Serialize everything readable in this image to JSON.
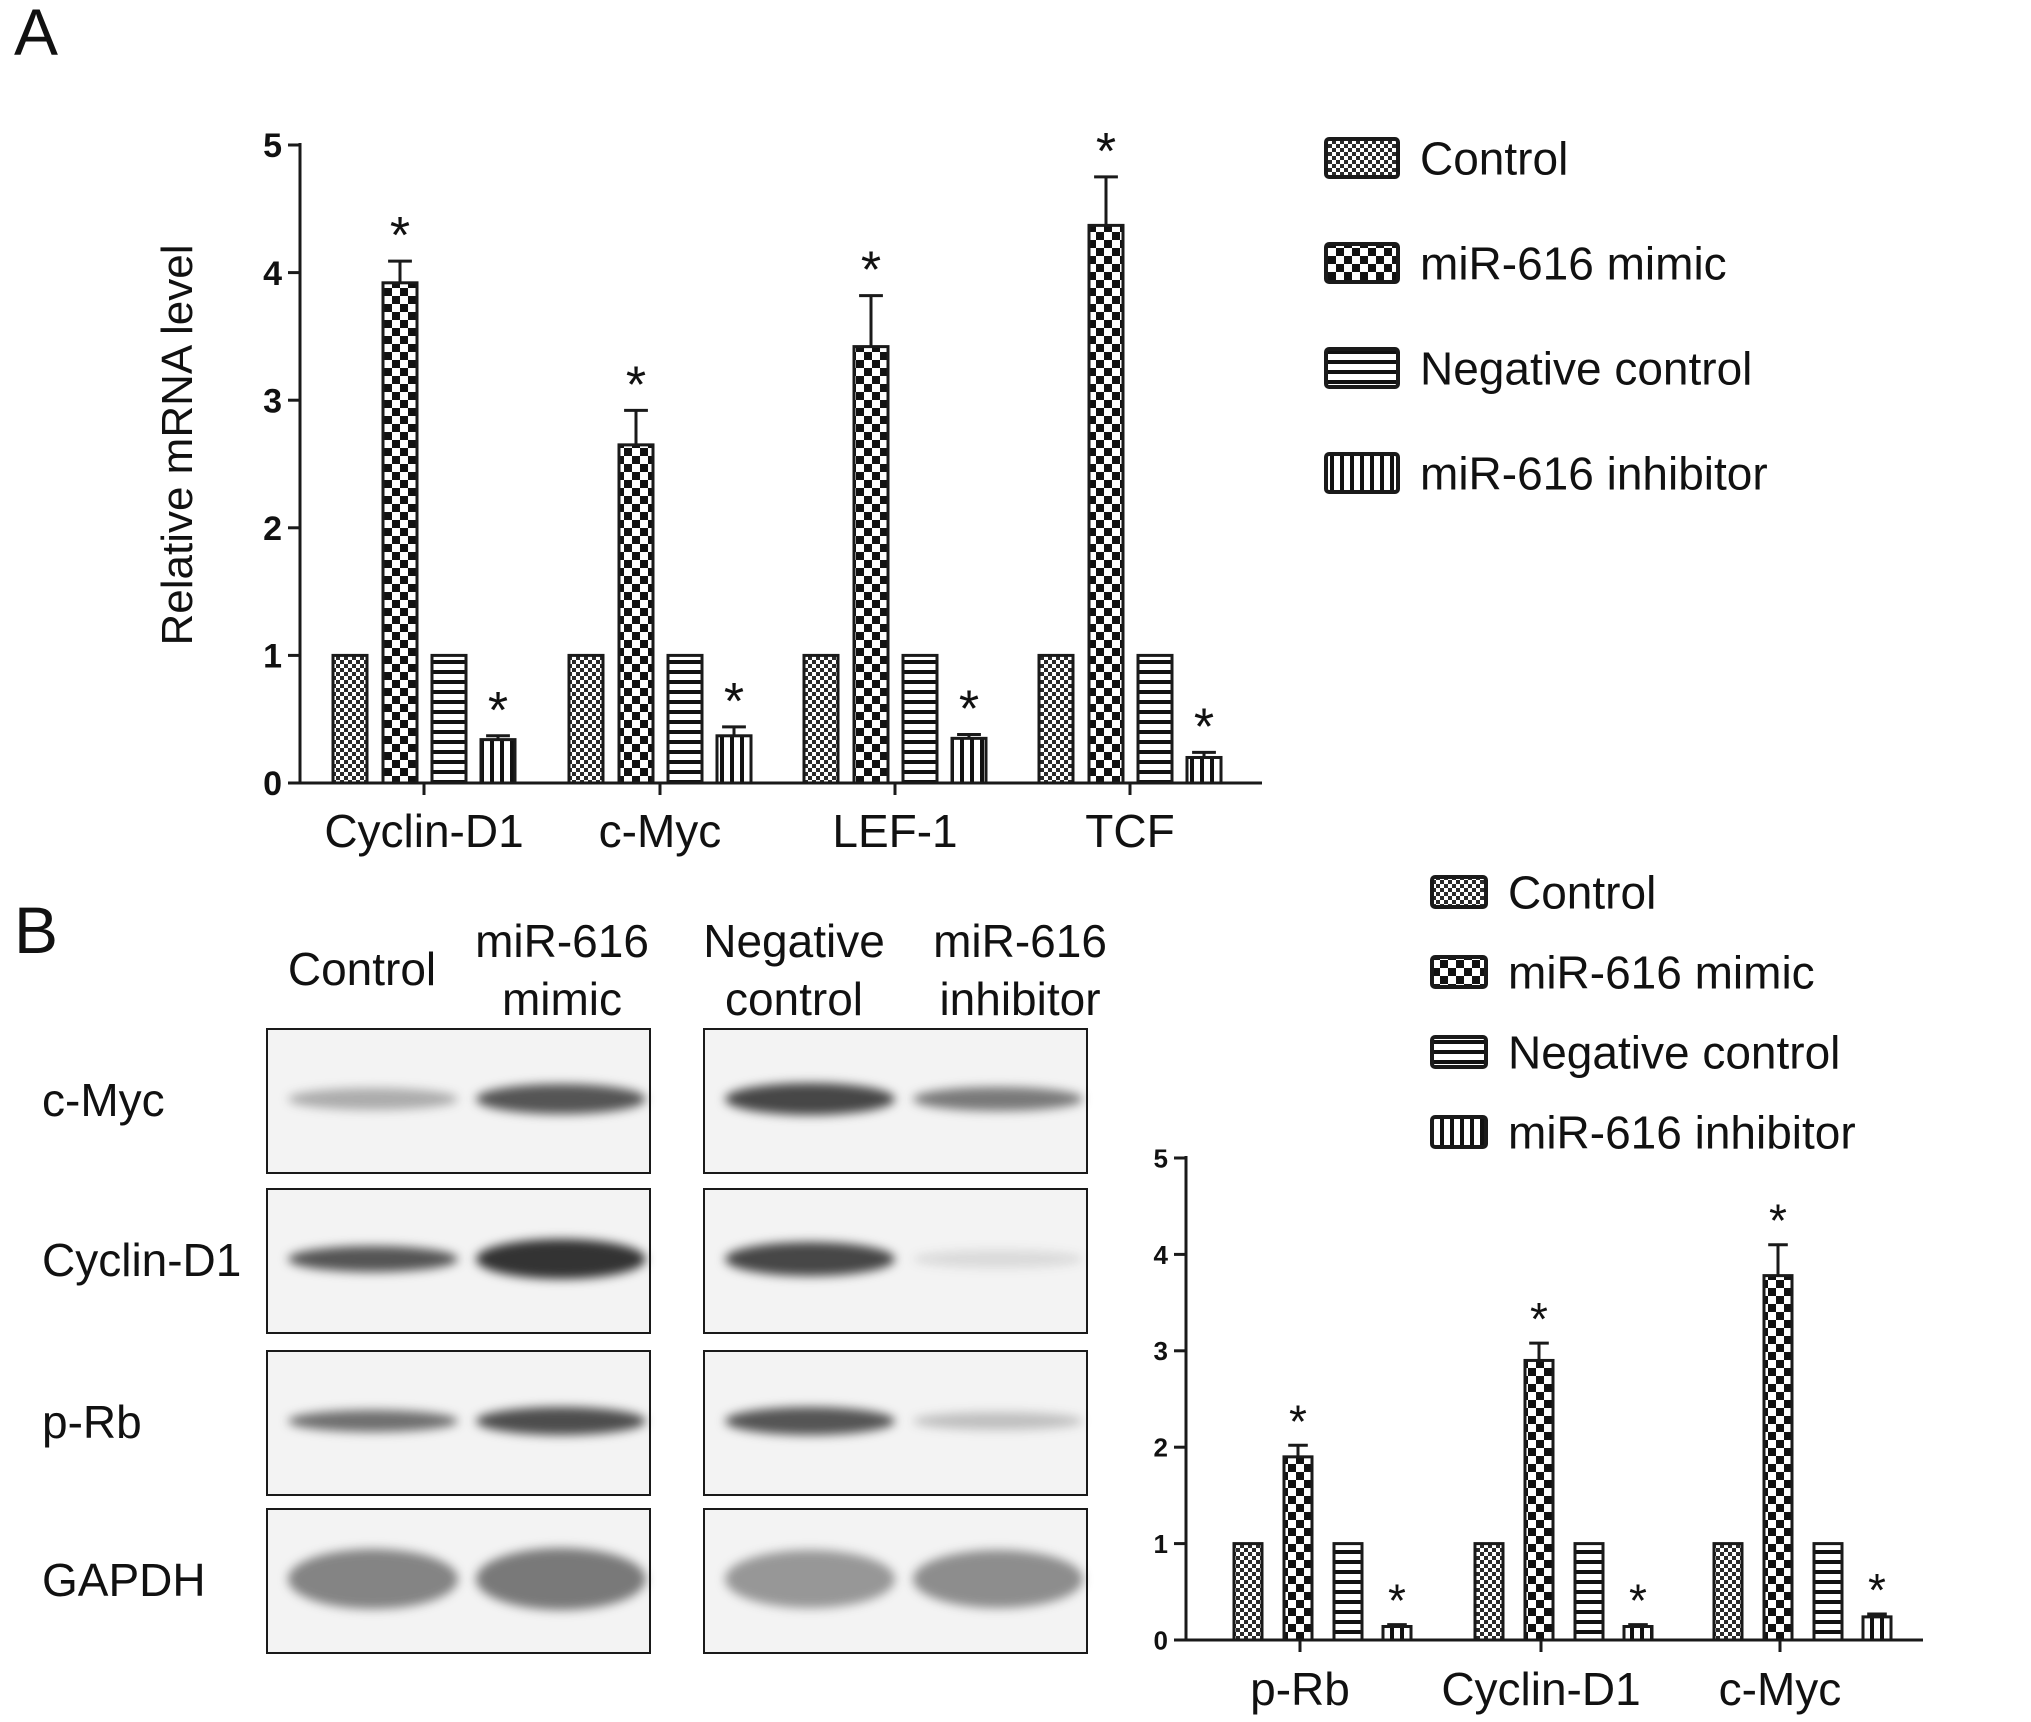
{
  "panel_a": {
    "label": "A"
  },
  "panel_b": {
    "label": "B",
    "blot": {
      "columns": [
        {
          "line1": "",
          "line2": "Control"
        },
        {
          "line1": "miR-616",
          "line2": "mimic"
        },
        {
          "line1": "Negative",
          "line2": "control"
        },
        {
          "line1": "miR-616",
          "line2": "inhibitor"
        }
      ],
      "rows": [
        "c-Myc",
        "Cyclin-D1",
        "p-Rb",
        "GAPDH"
      ]
    }
  },
  "colors": {
    "axis": "#1a1a1a",
    "bar_fill": "#ffffff",
    "band": "#3a3a3a"
  },
  "chart_data": [
    {
      "type": "bar",
      "panel": "A",
      "categories": [
        "Cyclin-D1",
        "c-Myc",
        "LEF-1",
        "TCF"
      ],
      "ylabel": "Relative mRNA level",
      "xlabel": "",
      "ylim": [
        0,
        5
      ],
      "yticks": [
        "0",
        "1",
        "2",
        "3",
        "4",
        "5"
      ],
      "grid": false,
      "legend_position": "top-right",
      "series": [
        {
          "name": "Control",
          "pattern": "fine-check",
          "values": [
            1,
            1,
            1,
            1
          ],
          "errors": [
            0,
            0,
            0,
            0
          ],
          "marks": [
            "",
            "",
            "",
            ""
          ]
        },
        {
          "name": "miR-616 mimic",
          "pattern": "checker",
          "values": [
            3.92,
            2.65,
            3.42,
            4.37
          ],
          "errors": [
            0.17,
            0.27,
            0.4,
            0.38
          ],
          "marks": [
            "*",
            "*",
            "*",
            "*"
          ]
        },
        {
          "name": "Negative control",
          "pattern": "horizontal-stripes",
          "values": [
            1,
            1,
            1,
            1
          ],
          "errors": [
            0,
            0,
            0,
            0
          ],
          "marks": [
            "",
            "",
            "",
            ""
          ]
        },
        {
          "name": "miR-616 inhibitor",
          "pattern": "vertical-stripes",
          "values": [
            0.34,
            0.37,
            0.35,
            0.2
          ],
          "errors": [
            0.03,
            0.07,
            0.03,
            0.04
          ],
          "marks": [
            "*",
            "*",
            "*",
            "*"
          ]
        }
      ]
    },
    {
      "type": "bar",
      "panel": "B",
      "categories": [
        "p-Rb",
        "Cyclin-D1",
        "c-Myc"
      ],
      "ylabel": "",
      "xlabel": "",
      "ylim": [
        0,
        5
      ],
      "yticks": [
        "0",
        "1",
        "2",
        "3",
        "4",
        "5"
      ],
      "grid": false,
      "legend_position": "top-right",
      "series": [
        {
          "name": "Control",
          "pattern": "fine-check",
          "values": [
            1,
            1,
            1
          ],
          "errors": [
            0,
            0,
            0
          ],
          "marks": [
            "",
            "",
            ""
          ]
        },
        {
          "name": "miR-616 mimic",
          "pattern": "checker",
          "values": [
            1.9,
            2.9,
            3.78
          ],
          "errors": [
            0.12,
            0.18,
            0.32
          ],
          "marks": [
            "*",
            "*",
            "*"
          ]
        },
        {
          "name": "Negative control",
          "pattern": "horizontal-stripes",
          "values": [
            1,
            1,
            1
          ],
          "errors": [
            0,
            0,
            0
          ],
          "marks": [
            "",
            "",
            ""
          ]
        },
        {
          "name": "miR-616 inhibitor",
          "pattern": "vertical-stripes",
          "values": [
            0.14,
            0.14,
            0.24
          ],
          "errors": [
            0.02,
            0.02,
            0.03
          ],
          "marks": [
            "*",
            "*",
            "*"
          ]
        }
      ]
    }
  ]
}
